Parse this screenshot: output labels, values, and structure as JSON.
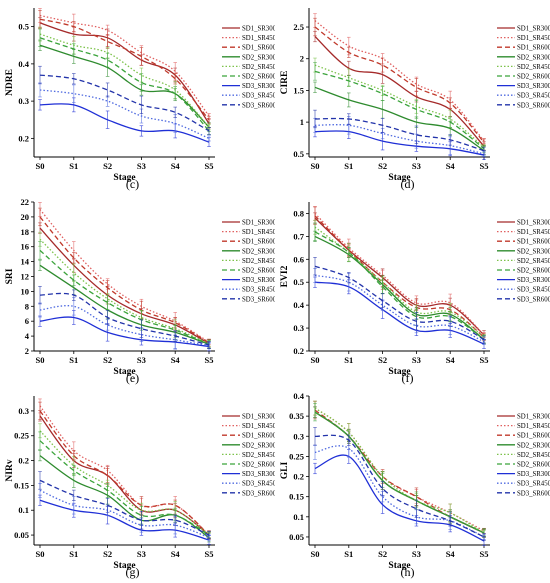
{
  "chart_data": [
    {
      "type": "line",
      "panel_label": "(c)",
      "ylabel": "NDRE",
      "xlabel": "Stage",
      "categories": [
        "S0",
        "S1",
        "S2",
        "S3",
        "S4",
        "S5"
      ],
      "ylim": [
        0.15,
        0.55
      ],
      "yticks": [
        0.2,
        0.3,
        0.4,
        0.5
      ],
      "legend_position": "right",
      "series": [
        {
          "name": "SD1_SR300",
          "values": [
            0.51,
            0.48,
            0.47,
            0.41,
            0.37,
            0.24
          ]
        },
        {
          "name": "SD1_SR450",
          "values": [
            0.53,
            0.51,
            0.49,
            0.43,
            0.38,
            0.26
          ]
        },
        {
          "name": "SD1_SR600",
          "values": [
            0.52,
            0.5,
            0.46,
            0.42,
            0.36,
            0.25
          ]
        },
        {
          "name": "SD2_SR300",
          "values": [
            0.45,
            0.42,
            0.39,
            0.33,
            0.32,
            0.23
          ]
        },
        {
          "name": "SD2_SR450",
          "values": [
            0.48,
            0.45,
            0.43,
            0.37,
            0.33,
            0.23
          ]
        },
        {
          "name": "SD2_SR600",
          "values": [
            0.47,
            0.44,
            0.41,
            0.35,
            0.32,
            0.22
          ]
        },
        {
          "name": "SD3_SR300",
          "values": [
            0.29,
            0.29,
            0.25,
            0.22,
            0.22,
            0.19
          ]
        },
        {
          "name": "SD3_SR450",
          "values": [
            0.33,
            0.32,
            0.3,
            0.26,
            0.24,
            0.2
          ]
        },
        {
          "name": "SD3_SR600",
          "values": [
            0.37,
            0.36,
            0.33,
            0.29,
            0.27,
            0.22
          ]
        }
      ]
    },
    {
      "type": "line",
      "panel_label": "(d)",
      "ylabel": "CIRE",
      "xlabel": "Stage",
      "categories": [
        "S0",
        "S1",
        "S2",
        "S3",
        "S4",
        "S5"
      ],
      "ylim": [
        0.45,
        2.8
      ],
      "yticks": [
        0.5,
        1.0,
        1.5,
        2.0,
        2.5
      ],
      "legend_position": "right",
      "series": [
        {
          "name": "SD1_SR300",
          "values": [
            2.35,
            1.85,
            1.75,
            1.4,
            1.2,
            0.62
          ]
        },
        {
          "name": "SD1_SR450",
          "values": [
            2.6,
            2.2,
            2.0,
            1.6,
            1.35,
            0.7
          ]
        },
        {
          "name": "SD1_SR600",
          "values": [
            2.5,
            2.1,
            1.9,
            1.55,
            1.3,
            0.68
          ]
        },
        {
          "name": "SD2_SR300",
          "values": [
            1.55,
            1.35,
            1.2,
            1.0,
            0.9,
            0.55
          ]
        },
        {
          "name": "SD2_SR450",
          "values": [
            1.9,
            1.7,
            1.5,
            1.25,
            1.05,
            0.6
          ]
        },
        {
          "name": "SD2_SR600",
          "values": [
            1.8,
            1.65,
            1.45,
            1.2,
            1.0,
            0.58
          ]
        },
        {
          "name": "SD3_SR300",
          "values": [
            0.85,
            0.85,
            0.7,
            0.62,
            0.58,
            0.48
          ]
        },
        {
          "name": "SD3_SR450",
          "values": [
            0.95,
            0.95,
            0.82,
            0.7,
            0.63,
            0.5
          ]
        },
        {
          "name": "SD3_SR600",
          "values": [
            1.05,
            1.05,
            0.95,
            0.8,
            0.72,
            0.55
          ]
        }
      ]
    },
    {
      "type": "line",
      "panel_label": "(e)",
      "ylabel": "SRI",
      "xlabel": "Stage",
      "categories": [
        "S0",
        "S1",
        "S2",
        "S3",
        "S4",
        "S5"
      ],
      "ylim": [
        2,
        22
      ],
      "yticks": [
        2,
        4,
        6,
        8,
        10,
        12,
        14,
        16,
        18,
        20,
        22
      ],
      "legend_position": "right",
      "series": [
        {
          "name": "SD1_SR300",
          "values": [
            18.5,
            13.5,
            9.5,
            7.0,
            5.5,
            3.0
          ]
        },
        {
          "name": "SD1_SR450",
          "values": [
            21.0,
            15.5,
            11.0,
            8.0,
            6.0,
            3.2
          ]
        },
        {
          "name": "SD1_SR600",
          "values": [
            20.0,
            14.5,
            10.5,
            7.5,
            5.8,
            3.1
          ]
        },
        {
          "name": "SD2_SR300",
          "values": [
            13.5,
            10.5,
            7.5,
            5.5,
            4.5,
            2.9
          ]
        },
        {
          "name": "SD2_SR450",
          "values": [
            17.0,
            12.5,
            9.0,
            6.5,
            5.0,
            3.0
          ]
        },
        {
          "name": "SD2_SR600",
          "values": [
            15.5,
            11.5,
            8.5,
            6.2,
            4.8,
            2.9
          ]
        },
        {
          "name": "SD3_SR300",
          "values": [
            6.0,
            6.5,
            4.5,
            3.5,
            3.2,
            2.6
          ]
        },
        {
          "name": "SD3_SR450",
          "values": [
            7.5,
            8.0,
            5.5,
            4.2,
            3.5,
            2.7
          ]
        },
        {
          "name": "SD3_SR600",
          "values": [
            9.5,
            9.5,
            6.5,
            5.0,
            4.0,
            2.8
          ]
        }
      ]
    },
    {
      "type": "line",
      "panel_label": "(f)",
      "ylabel": "EVI2",
      "xlabel": "Stage",
      "categories": [
        "S0",
        "S1",
        "S2",
        "S3",
        "S4",
        "S5"
      ],
      "ylim": [
        0.2,
        0.85
      ],
      "yticks": [
        0.2,
        0.3,
        0.4,
        0.5,
        0.6,
        0.7,
        0.8
      ],
      "legend_position": "right",
      "series": [
        {
          "name": "SD1_SR300",
          "values": [
            0.78,
            0.64,
            0.52,
            0.4,
            0.4,
            0.27
          ]
        },
        {
          "name": "SD1_SR450",
          "values": [
            0.8,
            0.65,
            0.53,
            0.41,
            0.41,
            0.27
          ]
        },
        {
          "name": "SD1_SR600",
          "values": [
            0.79,
            0.64,
            0.5,
            0.39,
            0.38,
            0.26
          ]
        },
        {
          "name": "SD2_SR300",
          "values": [
            0.7,
            0.62,
            0.49,
            0.36,
            0.36,
            0.25
          ]
        },
        {
          "name": "SD2_SR450",
          "values": [
            0.74,
            0.63,
            0.5,
            0.37,
            0.37,
            0.26
          ]
        },
        {
          "name": "SD2_SR600",
          "values": [
            0.72,
            0.63,
            0.48,
            0.35,
            0.35,
            0.25
          ]
        },
        {
          "name": "SD3_SR300",
          "values": [
            0.5,
            0.48,
            0.38,
            0.29,
            0.29,
            0.23
          ]
        },
        {
          "name": "SD3_SR450",
          "values": [
            0.53,
            0.5,
            0.4,
            0.31,
            0.31,
            0.24
          ]
        },
        {
          "name": "SD3_SR600",
          "values": [
            0.57,
            0.52,
            0.42,
            0.33,
            0.33,
            0.25
          ]
        }
      ]
    },
    {
      "type": "line",
      "panel_label": "(g)",
      "ylabel": "NIRv",
      "xlabel": "Stage",
      "categories": [
        "S0",
        "S1",
        "S2",
        "S3",
        "S4",
        "S5"
      ],
      "ylim": [
        0.03,
        0.33
      ],
      "yticks": [
        0.05,
        0.1,
        0.15,
        0.2,
        0.25,
        0.3
      ],
      "legend_position": "right",
      "series": [
        {
          "name": "SD1_SR300",
          "values": [
            0.29,
            0.2,
            0.17,
            0.1,
            0.1,
            0.05
          ]
        },
        {
          "name": "SD1_SR450",
          "values": [
            0.31,
            0.22,
            0.18,
            0.11,
            0.11,
            0.05
          ]
        },
        {
          "name": "SD1_SR600",
          "values": [
            0.3,
            0.21,
            0.17,
            0.11,
            0.11,
            0.05
          ]
        },
        {
          "name": "SD2_SR300",
          "values": [
            0.21,
            0.16,
            0.13,
            0.08,
            0.09,
            0.045
          ]
        },
        {
          "name": "SD2_SR450",
          "values": [
            0.26,
            0.19,
            0.15,
            0.1,
            0.1,
            0.05
          ]
        },
        {
          "name": "SD2_SR600",
          "values": [
            0.24,
            0.18,
            0.14,
            0.09,
            0.09,
            0.05
          ]
        },
        {
          "name": "SD3_SR300",
          "values": [
            0.12,
            0.1,
            0.09,
            0.06,
            0.06,
            0.04
          ]
        },
        {
          "name": "SD3_SR450",
          "values": [
            0.14,
            0.11,
            0.1,
            0.07,
            0.07,
            0.045
          ]
        },
        {
          "name": "SD3_SR600",
          "values": [
            0.16,
            0.13,
            0.11,
            0.08,
            0.08,
            0.05
          ]
        }
      ]
    },
    {
      "type": "line",
      "panel_label": "(h)",
      "ylabel": "GLI",
      "xlabel": "Stage",
      "categories": [
        "S0",
        "S1",
        "S2",
        "S3",
        "S4",
        "S5"
      ],
      "ylim": [
        0.03,
        0.4
      ],
      "yticks": [
        0.05,
        0.1,
        0.15,
        0.2,
        0.25,
        0.3,
        0.35,
        0.4
      ],
      "legend_position": "right",
      "series": [
        {
          "name": "SD1_SR300",
          "values": [
            0.36,
            0.3,
            0.19,
            0.14,
            0.1,
            0.06
          ]
        },
        {
          "name": "SD1_SR450",
          "values": [
            0.37,
            0.31,
            0.2,
            0.15,
            0.11,
            0.065
          ]
        },
        {
          "name": "SD1_SR600",
          "values": [
            0.365,
            0.3,
            0.2,
            0.15,
            0.1,
            0.06
          ]
        },
        {
          "name": "SD2_SR300",
          "values": [
            0.36,
            0.3,
            0.19,
            0.14,
            0.1,
            0.06
          ]
        },
        {
          "name": "SD2_SR450",
          "values": [
            0.37,
            0.31,
            0.2,
            0.14,
            0.11,
            0.06
          ]
        },
        {
          "name": "SD2_SR600",
          "values": [
            0.36,
            0.3,
            0.19,
            0.14,
            0.1,
            0.06
          ]
        },
        {
          "name": "SD3_SR300",
          "values": [
            0.22,
            0.25,
            0.13,
            0.09,
            0.08,
            0.04
          ]
        },
        {
          "name": "SD3_SR450",
          "values": [
            0.26,
            0.27,
            0.15,
            0.1,
            0.09,
            0.05
          ]
        },
        {
          "name": "SD3_SR600",
          "values": [
            0.3,
            0.29,
            0.17,
            0.12,
            0.09,
            0.05
          ]
        }
      ]
    }
  ],
  "series_styles": [
    {
      "color": "#a52a2a",
      "dash": "solid"
    },
    {
      "color": "#e06060",
      "dash": "dot"
    },
    {
      "color": "#c0392b",
      "dash": "dash"
    },
    {
      "color": "#2e8b2e",
      "dash": "solid"
    },
    {
      "color": "#7cc24a",
      "dash": "dot"
    },
    {
      "color": "#3aa33a",
      "dash": "dash"
    },
    {
      "color": "#1f2fd6",
      "dash": "solid"
    },
    {
      "color": "#4f6ae0",
      "dash": "dot"
    },
    {
      "color": "#2233aa",
      "dash": "dash"
    }
  ]
}
